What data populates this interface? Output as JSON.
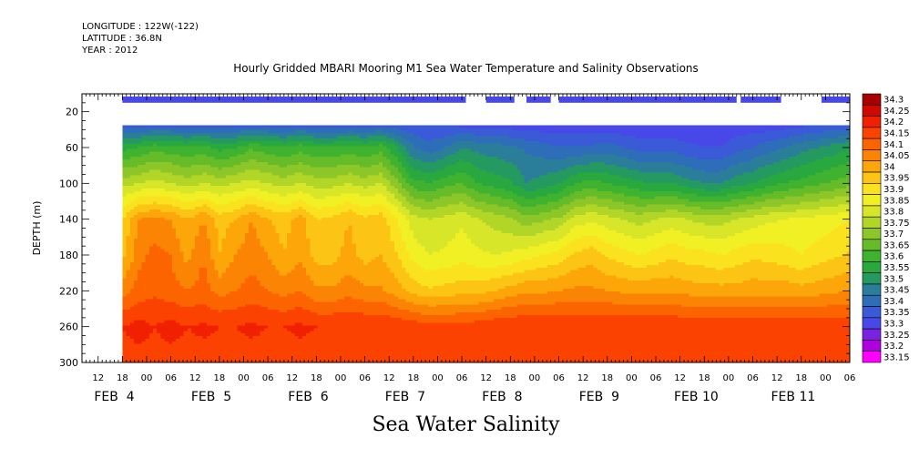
{
  "header": {
    "longitude": "LONGITUDE : 122W(-122)",
    "latitude": "LATITUDE : 36.8N",
    "year": "YEAR : 2012"
  },
  "chart_data": {
    "type": "heatmap",
    "title": "Hourly Gridded MBARI Mooring M1 Sea Water Temperature and Salinity Observations",
    "xlabel": "Sea Water Salinity",
    "ylabel": "DEPTH (m)",
    "x_range_hours": [
      -10,
      180
    ],
    "y_range": [
      300,
      0
    ],
    "y_ticks": [
      20,
      60,
      100,
      140,
      180,
      220,
      260,
      300
    ],
    "x_hour_ticks": [
      {
        "t": -6,
        "label": "12"
      },
      {
        "t": 0,
        "label": "18"
      },
      {
        "t": 6,
        "label": "00"
      },
      {
        "t": 12,
        "label": "06"
      },
      {
        "t": 18,
        "label": "12"
      },
      {
        "t": 24,
        "label": "18"
      },
      {
        "t": 30,
        "label": "00"
      },
      {
        "t": 36,
        "label": "06"
      },
      {
        "t": 42,
        "label": "12"
      },
      {
        "t": 48,
        "label": "18"
      },
      {
        "t": 54,
        "label": "00"
      },
      {
        "t": 60,
        "label": "06"
      },
      {
        "t": 66,
        "label": "12"
      },
      {
        "t": 72,
        "label": "18"
      },
      {
        "t": 78,
        "label": "00"
      },
      {
        "t": 84,
        "label": "06"
      },
      {
        "t": 90,
        "label": "12"
      },
      {
        "t": 96,
        "label": "18"
      },
      {
        "t": 102,
        "label": "00"
      },
      {
        "t": 108,
        "label": "06"
      },
      {
        "t": 114,
        "label": "12"
      },
      {
        "t": 120,
        "label": "18"
      },
      {
        "t": 126,
        "label": "00"
      },
      {
        "t": 132,
        "label": "06"
      },
      {
        "t": 138,
        "label": "12"
      },
      {
        "t": 144,
        "label": "18"
      },
      {
        "t": 150,
        "label": "00"
      },
      {
        "t": 156,
        "label": "06"
      },
      {
        "t": 162,
        "label": "12"
      },
      {
        "t": 168,
        "label": "18"
      },
      {
        "t": 174,
        "label": "00"
      },
      {
        "t": 180,
        "label": "06"
      }
    ],
    "x_day_labels": [
      {
        "t": -2,
        "label": "FEB  4"
      },
      {
        "t": 22,
        "label": "FEB  5"
      },
      {
        "t": 46,
        "label": "FEB  6"
      },
      {
        "t": 70,
        "label": "FEB  7"
      },
      {
        "t": 94,
        "label": "FEB  8"
      },
      {
        "t": 118,
        "label": "FEB  9"
      },
      {
        "t": 142,
        "label": "FEB 10"
      },
      {
        "t": 166,
        "label": "FEB 11"
      }
    ],
    "levels": [
      33.15,
      33.2,
      33.25,
      33.3,
      33.35,
      33.4,
      33.45,
      33.5,
      33.55,
      33.6,
      33.65,
      33.7,
      33.75,
      33.8,
      33.85,
      33.9,
      33.95,
      34,
      34.05,
      34.1,
      34.15,
      34.2,
      34.25,
      34.3
    ],
    "level_labels": [
      "33.15",
      "33.2",
      "33.25",
      "33.3",
      "33.35",
      "33.4",
      "33.45",
      "33.5",
      "33.55",
      "33.6",
      "33.65",
      "33.7",
      "33.75",
      "33.8",
      "33.85",
      "33.9",
      "33.95",
      "34",
      "34.05",
      "34.1",
      "34.15",
      "34.2",
      "34.25",
      "34.3"
    ],
    "level_colors": [
      "#ff00ff",
      "#b000e0",
      "#7a22e0",
      "#4848e8",
      "#3a5ad8",
      "#2e6eb8",
      "#2a7e9a",
      "#249a60",
      "#2aa840",
      "#3fb230",
      "#66bb28",
      "#8cc628",
      "#b2d628",
      "#d8e62a",
      "#f0f024",
      "#fae21e",
      "#fcc414",
      "#fca60a",
      "#fc8404",
      "#fc6400",
      "#fc4200",
      "#f02000",
      "#d00800",
      "#a80000"
    ],
    "near_surface_row": {
      "depth_top": 3,
      "depth_bottom": 10,
      "salinity": 33.3,
      "segments_hours": [
        [
          0,
          85
        ],
        [
          90,
          97
        ],
        [
          100,
          106
        ],
        [
          108,
          152
        ],
        [
          153,
          163
        ],
        [
          173,
          180
        ]
      ]
    },
    "main_field": {
      "depth_top": 35,
      "depth_bottom": 300,
      "time_knots": [
        0,
        4,
        8,
        12,
        16,
        20,
        24,
        28,
        32,
        36,
        40,
        44,
        48,
        52,
        56,
        60,
        64,
        68,
        72,
        76,
        80,
        84,
        88,
        92,
        96,
        100,
        104,
        108,
        112,
        116,
        120,
        124,
        128,
        132,
        136,
        140,
        144,
        148,
        152,
        156,
        160,
        164,
        168,
        172,
        176,
        180
      ],
      "depth_knots": [
        35,
        60,
        100,
        140,
        180,
        220,
        260,
        300
      ],
      "values": [
        [
          33.38,
          33.38,
          33.38,
          33.38,
          33.38,
          33.38,
          33.38,
          33.38,
          33.38,
          33.38,
          33.38,
          33.38,
          33.38,
          33.38,
          33.38,
          33.38,
          33.38,
          33.37,
          33.36,
          33.35,
          33.35,
          33.34,
          33.34,
          33.34,
          33.33,
          33.32,
          33.32,
          33.32,
          33.32,
          33.32,
          33.32,
          33.31,
          33.31,
          33.31,
          33.31,
          33.31,
          33.31,
          33.31,
          33.32,
          33.32,
          33.32,
          33.33,
          33.34,
          33.35,
          33.36,
          33.37
        ],
        [
          33.58,
          33.6,
          33.63,
          33.62,
          33.6,
          33.62,
          33.58,
          33.6,
          33.64,
          33.62,
          33.6,
          33.63,
          33.6,
          33.6,
          33.62,
          33.6,
          33.63,
          33.55,
          33.45,
          33.42,
          33.45,
          33.5,
          33.48,
          33.47,
          33.46,
          33.44,
          33.42,
          33.4,
          33.4,
          33.41,
          33.42,
          33.4,
          33.38,
          33.38,
          33.38,
          33.36,
          33.35,
          33.35,
          33.38,
          33.4,
          33.43,
          33.45,
          33.48,
          33.5,
          33.52,
          33.55
        ],
        [
          33.78,
          33.8,
          33.82,
          33.8,
          33.78,
          33.8,
          33.78,
          33.8,
          33.82,
          33.8,
          33.78,
          33.8,
          33.78,
          33.78,
          33.8,
          33.78,
          33.8,
          33.72,
          33.62,
          33.6,
          33.63,
          33.65,
          33.6,
          33.58,
          33.56,
          33.5,
          33.52,
          33.55,
          33.6,
          33.62,
          33.6,
          33.58,
          33.56,
          33.55,
          33.55,
          33.52,
          33.5,
          33.5,
          33.53,
          33.55,
          33.58,
          33.6,
          33.62,
          33.64,
          33.66,
          33.68
        ],
        [
          33.95,
          34.05,
          34.06,
          34.05,
          34.0,
          34.05,
          33.98,
          34.0,
          34.05,
          34.0,
          33.98,
          34.02,
          33.95,
          33.96,
          34.0,
          33.96,
          33.98,
          33.9,
          33.82,
          33.8,
          33.82,
          33.84,
          33.8,
          33.78,
          33.76,
          33.72,
          33.74,
          33.76,
          33.82,
          33.84,
          33.82,
          33.8,
          33.78,
          33.8,
          33.82,
          33.8,
          33.78,
          33.78,
          33.8,
          33.82,
          33.84,
          33.85,
          33.86,
          33.87,
          33.88,
          33.9
        ],
        [
          33.98,
          34.08,
          34.12,
          34.1,
          34.03,
          34.1,
          34.0,
          34.05,
          34.08,
          34.05,
          34.0,
          34.04,
          33.98,
          33.98,
          34.02,
          33.98,
          34.0,
          33.95,
          33.88,
          33.85,
          33.86,
          33.88,
          33.86,
          33.85,
          33.86,
          33.88,
          33.9,
          33.92,
          33.96,
          33.98,
          33.94,
          33.92,
          33.9,
          33.92,
          33.94,
          33.92,
          33.92,
          33.9,
          33.92,
          33.94,
          33.93,
          33.92,
          33.9,
          33.92,
          33.94,
          33.96
        ],
        [
          34.08,
          34.12,
          34.14,
          34.12,
          34.1,
          34.12,
          34.08,
          34.1,
          34.12,
          34.1,
          34.08,
          34.1,
          34.06,
          34.06,
          34.08,
          34.06,
          34.06,
          34.02,
          33.98,
          33.96,
          33.97,
          33.98,
          33.98,
          34.0,
          34.02,
          34.04,
          34.04,
          34.05,
          34.06,
          34.06,
          34.05,
          34.04,
          34.04,
          34.04,
          34.04,
          34.03,
          34.02,
          34.02,
          34.02,
          34.03,
          34.03,
          34.03,
          34.02,
          34.03,
          34.04,
          34.05
        ],
        [
          34.2,
          34.22,
          34.2,
          34.22,
          34.2,
          34.21,
          34.2,
          34.2,
          34.21,
          34.2,
          34.2,
          34.21,
          34.2,
          34.2,
          34.2,
          34.2,
          34.2,
          34.19,
          34.18,
          34.17,
          34.17,
          34.17,
          34.18,
          34.19,
          34.2,
          34.2,
          34.2,
          34.2,
          34.2,
          34.2,
          34.2,
          34.2,
          34.2,
          34.2,
          34.2,
          34.19,
          34.19,
          34.19,
          34.19,
          34.19,
          34.19,
          34.19,
          34.19,
          34.19,
          34.19,
          34.19
        ],
        [
          34.18,
          34.18,
          34.18,
          34.18,
          34.18,
          34.18,
          34.18,
          34.18,
          34.18,
          34.18,
          34.18,
          34.18,
          34.18,
          34.18,
          34.18,
          34.18,
          34.18,
          34.18,
          34.18,
          34.18,
          34.18,
          34.18,
          34.18,
          34.18,
          34.18,
          34.18,
          34.18,
          34.18,
          34.18,
          34.18,
          34.18,
          34.18,
          34.18,
          34.18,
          34.18,
          34.18,
          34.18,
          34.18,
          34.18,
          34.18,
          34.18,
          34.18,
          34.18,
          34.18,
          34.18,
          34.18
        ]
      ]
    },
    "grid": false,
    "legend": "right"
  }
}
